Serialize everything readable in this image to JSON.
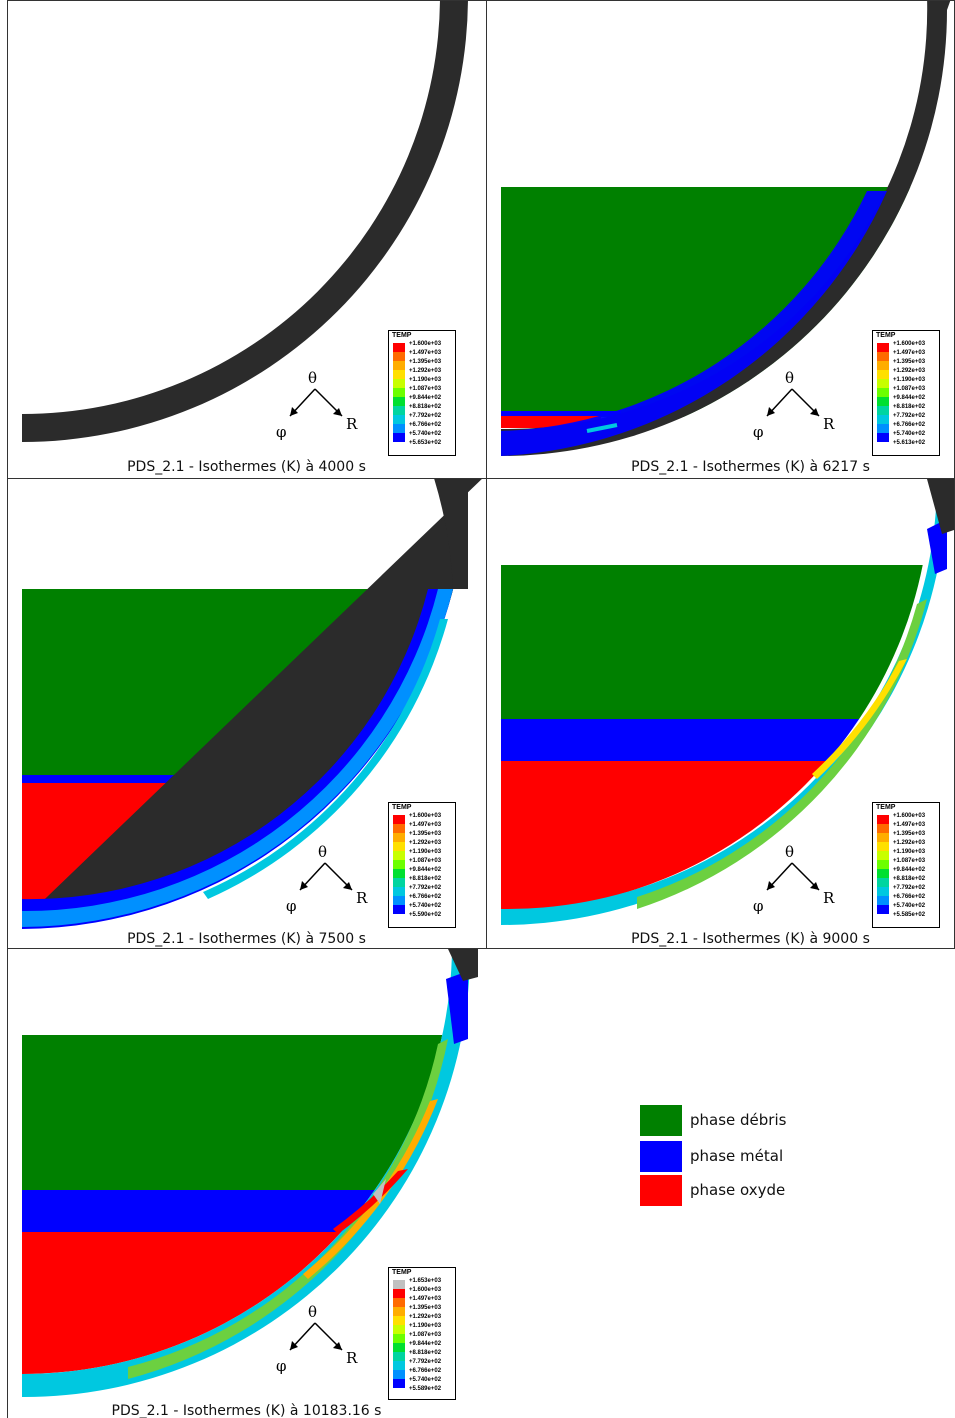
{
  "panels": [
    {
      "caption": "PDS_2.1 - Isothermes (K) à 4000 s",
      "legend_title": "TEMP",
      "legend_values": [
        "+1.600e+03",
        "+1.497e+03",
        "+1.395e+03",
        "+1.292e+03",
        "+1.190e+03",
        "+1.087e+03",
        "+9.844e+02",
        "+8.818e+02",
        "+7.792e+02",
        "+6.766e+02",
        "+5.740e+02",
        "+5.653e+02"
      ]
    },
    {
      "caption": "PDS_2.1 - Isothermes (K) à 6217 s",
      "legend_title": "TEMP",
      "legend_values": [
        "+1.600e+03",
        "+1.497e+03",
        "+1.395e+03",
        "+1.292e+03",
        "+1.190e+03",
        "+1.087e+03",
        "+9.844e+02",
        "+8.818e+02",
        "+7.792e+02",
        "+6.766e+02",
        "+5.740e+02",
        "+5.613e+02"
      ]
    },
    {
      "caption": "PDS_2.1 - Isothermes (K) à 7500 s",
      "legend_title": "TEMP",
      "legend_values": [
        "+1.600e+03",
        "+1.497e+03",
        "+1.395e+03",
        "+1.292e+03",
        "+1.190e+03",
        "+1.087e+03",
        "+9.844e+02",
        "+8.818e+02",
        "+7.792e+02",
        "+6.766e+02",
        "+5.740e+02",
        "+5.590e+02"
      ]
    },
    {
      "caption": "PDS_2.1 - Isothermes (K) à 9000 s",
      "legend_title": "TEMP",
      "legend_values": [
        "+1.600e+03",
        "+1.497e+03",
        "+1.395e+03",
        "+1.292e+03",
        "+1.190e+03",
        "+1.087e+03",
        "+9.844e+02",
        "+8.818e+02",
        "+7.792e+02",
        "+6.766e+02",
        "+5.740e+02",
        "+5.585e+02"
      ]
    },
    {
      "caption": "PDS_2.1 - Isothermes (K) à 10183.16 s",
      "legend_title": "TEMP",
      "legend_values": [
        "+1.653e+03",
        "+1.600e+03",
        "+1.497e+03",
        "+1.395e+03",
        "+1.292e+03",
        "+1.190e+03",
        "+1.087e+03",
        "+9.844e+02",
        "+8.818e+02",
        "+7.792e+02",
        "+6.766e+02",
        "+5.740e+02",
        "+5.589e+02"
      ]
    }
  ],
  "axes": {
    "theta": "θ",
    "phi": "φ",
    "r": "R"
  },
  "legend_colors_12": [
    "#ff0000",
    "#ff6a00",
    "#ffad00",
    "#ffe000",
    "#c8ff00",
    "#6cff00",
    "#00e030",
    "#00d5a0",
    "#00c8e0",
    "#0090ff",
    "#0000ff",
    "#333333"
  ],
  "legend_colors_13": [
    "#c0c0c0",
    "#ff0000",
    "#ff6a00",
    "#ffad00",
    "#ffe000",
    "#c8ff00",
    "#6cff00",
    "#00e030",
    "#00d5a0",
    "#00c8e0",
    "#0090ff",
    "#0000ff",
    "#333333"
  ],
  "phase_legend": [
    {
      "label": "phase débris",
      "color": "#008000"
    },
    {
      "label": "phase métal",
      "color": "#0000ff"
    },
    {
      "label": "phase oxyde",
      "color": "#ff0000"
    }
  ]
}
